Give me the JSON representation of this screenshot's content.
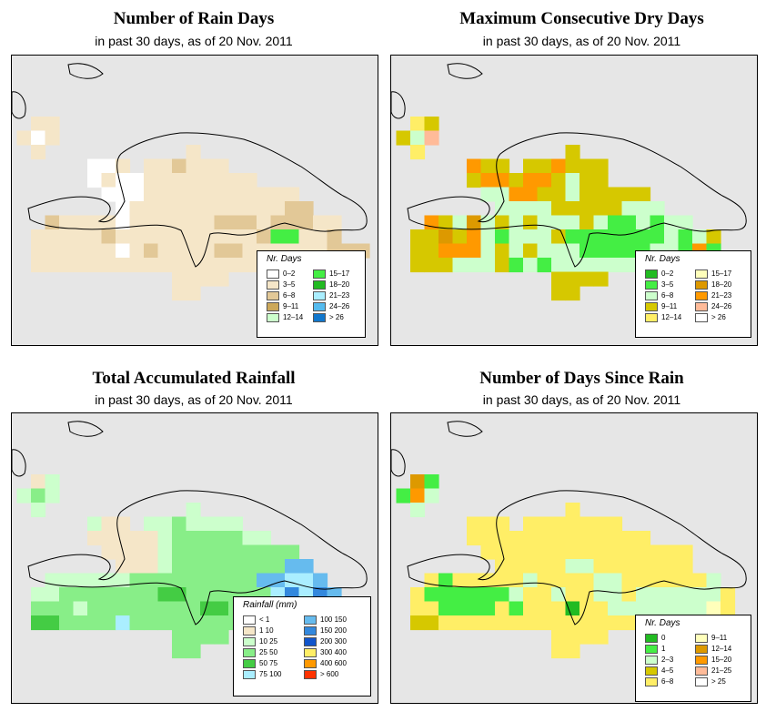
{
  "panels": [
    {
      "id": "rain-days",
      "title": "Number of Rain Days",
      "subtitle": "in past 30 days, as of  20 Nov. 2011",
      "legend": {
        "title": "Nr. Days",
        "entries": [
          {
            "label": "0–2",
            "color": "#ffffff"
          },
          {
            "label": "3–5",
            "color": "#f5e6c8"
          },
          {
            "label": "6–8",
            "color": "#e2c897"
          },
          {
            "label": "9–11",
            "color": "#cca85a"
          },
          {
            "label": "12–14",
            "color": "#ccffcc"
          },
          {
            "label": "15–17",
            "color": "#44ee44"
          },
          {
            "label": "18–20",
            "color": "#22bb22"
          },
          {
            "label": "21–23",
            "color": "#aaeeff"
          },
          {
            "label": "24–26",
            "color": "#55bbee"
          },
          {
            "label": "> 26",
            "color": "#1177cc"
          }
        ]
      },
      "grid_classes": [
        "..........................",
        "...........................",
        "..bb.....................",
        ".bab.....................",
        "..b..........b...........",
        "......aab.bbcbbb.........",
        "......abaabbbbbbbb.......",
        ".......aaabbbbbbbbbbb....",
        "........abbbbbbbbbbbcc...",
        "...cbbbbabbbbbbcccbcccbb.",
        "..bbbbbcbbbbbbbbbbcffbbc.",
        "..bbbbbbabcbbbbccbbbbbbccc",
        "..bbbbbbbbbbbbbbbbbbbbbbf.",
        "............bbbb.........",
        "............bb..........."
      ]
    },
    {
      "id": "dry-days",
      "title": "Maximum Consecutive Dry Days",
      "subtitle": "in past 30 days, as of  20 Nov. 2011",
      "legend": {
        "title": "Nr. Days",
        "entries": [
          {
            "label": "0–2",
            "color": "#22bb22"
          },
          {
            "label": "3–5",
            "color": "#44ee44"
          },
          {
            "label": "6–8",
            "color": "#ccffcc"
          },
          {
            "label": "9–11",
            "color": "#d6c800"
          },
          {
            "label": "12–14",
            "color": "#ffee66"
          },
          {
            "label": "15–17",
            "color": "#ffffbb"
          },
          {
            "label": "18–20",
            "color": "#dd9900"
          },
          {
            "label": "21–23",
            "color": "#ff9900"
          },
          {
            "label": "24–26",
            "color": "#ffbb99"
          },
          {
            "label": "> 26",
            "color": "#ffffff"
          }
        ]
      },
      "grid_classes": [
        "..........................",
        "...........................",
        "..ed.....................",
        ".dci.....................",
        "..e..........d...........",
        "......hdd.ddhddd.........",
        "......dhhdhhdcdd.........",
        ".......cchhddcddddd......",
        "........ccccdddddccc.....",
        "...hdcgcdcdcccdcbbcbcc...",
        "..ddgdhcbcccdbbbbbbbcbcd.",
        "..ddhhhcdcdcccbbbbbccbhb.",
        "..dddcccdbcbcccccccbccbd.",
        "............dddd.........",
        "............dd..........."
      ]
    },
    {
      "id": "rainfall",
      "title": "Total Accumulated Rainfall",
      "subtitle": "in past 30 days, as of  20 Nov. 2011",
      "legend": {
        "title": "Rainfall (mm)",
        "entries": [
          {
            "label": "< 1",
            "color": "#ffffff"
          },
          {
            "label": "1    10",
            "color": "#f5e6c8"
          },
          {
            "label": "10    25",
            "color": "#ccffcc"
          },
          {
            "label": "25    50",
            "color": "#88ee88"
          },
          {
            "label": "50    75",
            "color": "#44cc44"
          },
          {
            "label": "75   100",
            "color": "#aaeeff"
          },
          {
            "label": "100   150",
            "color": "#66bbee"
          },
          {
            "label": "150   200",
            "color": "#3388dd"
          },
          {
            "label": "200   300",
            "color": "#1155cc"
          },
          {
            "label": "300   400",
            "color": "#ffee66"
          },
          {
            "label": "400   600",
            "color": "#ff9900"
          },
          {
            "label": "> 600",
            "color": "#ff3300"
          }
        ]
      },
      "grid_classes": [
        "..........................",
        "...........................",
        "..bc.....................",
        ".cdc.....................",
        "..c..........c...........",
        "......cbb.ccdcccc........",
        "......bbbbbcdddddcc......",
        ".......bbbbcddddddddd....",
        "........bbbcddddddddgg...",
        "...ccccccdddddddddggffg..",
        "..ccdddddddeeddddddfhfhg.",
        "..dddcddddddddeeddfghghgf",
        "..eeddddfddddddddddddggf.",
        "............dddd.........",
        "............dd..........."
      ]
    },
    {
      "id": "since-rain",
      "title": "Number of Days Since Rain",
      "subtitle": "in past 30 days, as of  20 Nov. 2011",
      "legend": {
        "title": "Nr. Days",
        "entries": [
          {
            "label": "0",
            "color": "#22bb22"
          },
          {
            "label": "1",
            "color": "#44ee44"
          },
          {
            "label": "2–3",
            "color": "#ccffcc"
          },
          {
            "label": "4–5",
            "color": "#d6c800"
          },
          {
            "label": "6–8",
            "color": "#ffee66"
          },
          {
            "label": "9–11",
            "color": "#ffffbb"
          },
          {
            "label": "12–14",
            "color": "#dd9900"
          },
          {
            "label": "15–20",
            "color": "#ff9900"
          },
          {
            "label": "21–25",
            "color": "#ffbb99"
          },
          {
            "label": "> 25",
            "color": "#ffffff"
          }
        ]
      },
      "grid_classes": [
        "..........................",
        "...........................",
        "..gb.....................",
        ".bhc.....................",
        "..c..........e...........",
        "......eee.eeeeeee........",
        "......eeeeeeeeeeeee......",
        ".......eeeeeeeeeeeeeee...",
        "........eeeeecceeeeeee...",
        "...ebeeeeeceeeecceeeeeec..",
        "..ebbbbbbceeceeccecccccce.",
        "..eebbbbebeeeaeecccccccfe",
        "..ddeeeeeeeeeeeeeeeeeeff.",
        "............eeee.........",
        "............ee..........."
      ]
    }
  ]
}
